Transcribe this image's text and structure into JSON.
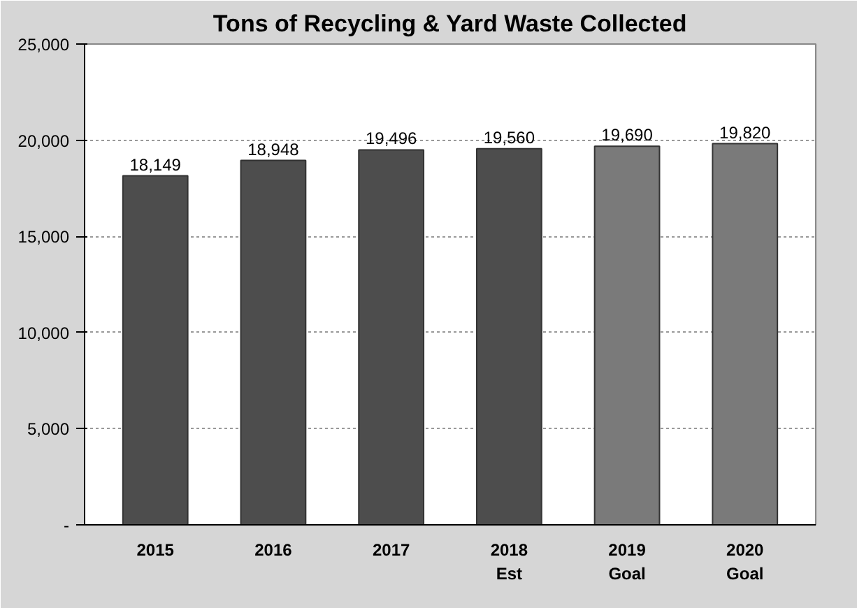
{
  "chart_data": {
    "type": "bar",
    "title": "Tons of Recycling & Yard Waste Collected",
    "categories": [
      "2015",
      "2016",
      "2017",
      "2018\nEst",
      "2019\nGoal",
      "2020\nGoal"
    ],
    "values": [
      18149,
      18948,
      19496,
      19560,
      19690,
      19820
    ],
    "value_labels": [
      "18,149",
      "18,948",
      "19,496",
      "19,560",
      "19,690",
      "19,820"
    ],
    "colors": [
      "#4d4d4d",
      "#4d4d4d",
      "#4d4d4d",
      "#4d4d4d",
      "#7a7a7a",
      "#7a7a7a"
    ],
    "ylim": [
      0,
      25000
    ],
    "yticks": [
      {
        "value": 0,
        "label": "-"
      },
      {
        "value": 5000,
        "label": "5,000"
      },
      {
        "value": 10000,
        "label": "10,000"
      },
      {
        "value": 15000,
        "label": "15,000"
      },
      {
        "value": 20000,
        "label": "20,000"
      },
      {
        "value": 25000,
        "label": "25,000"
      }
    ],
    "grid": "y"
  }
}
